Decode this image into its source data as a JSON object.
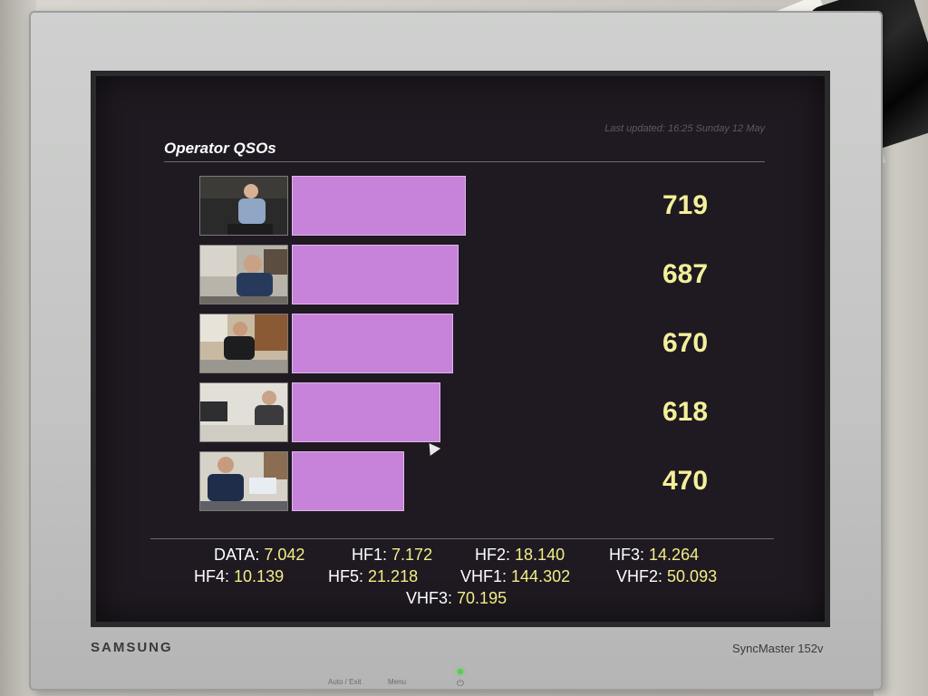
{
  "monitor": {
    "brand": "SAMSUNG",
    "model": "SyncMaster 152v",
    "controls": [
      "Auto / Exit",
      "Menu"
    ]
  },
  "screen": {
    "title": "Operator QSOs",
    "last_updated": "Last updated: 16:25 Sunday 12 May",
    "operators": [
      {
        "value": "719",
        "qsos": 719
      },
      {
        "value": "687",
        "qsos": 687
      },
      {
        "value": "670",
        "qsos": 670
      },
      {
        "value": "618",
        "qsos": 618
      },
      {
        "value": "470",
        "qsos": 470
      }
    ],
    "bar_color": "#c683d9",
    "value_color": "#f4f09a",
    "stats": [
      {
        "label": "DATA",
        "value": "7.042"
      },
      {
        "label": "HF1",
        "value": "7.172"
      },
      {
        "label": "HF2",
        "value": "18.140"
      },
      {
        "label": "HF3",
        "value": "14.264"
      },
      {
        "label": "HF4",
        "value": "10.139"
      },
      {
        "label": "HF5",
        "value": "21.218"
      },
      {
        "label": "VHF1",
        "value": "144.302"
      },
      {
        "label": "VHF2",
        "value": "50.093"
      },
      {
        "label": "VHF3",
        "value": "70.195"
      }
    ]
  }
}
